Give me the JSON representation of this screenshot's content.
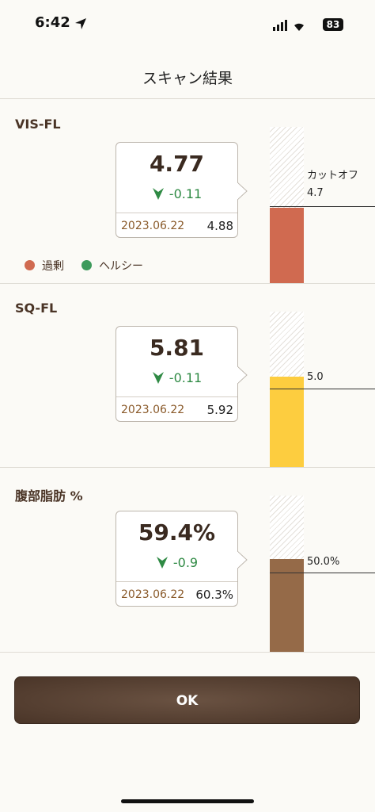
{
  "status_bar": {
    "time": "6:42",
    "battery": "83"
  },
  "header": {
    "title": "スキャン結果"
  },
  "sections": [
    {
      "label": "VIS-FL",
      "value": "4.77",
      "change": "-0.11",
      "date": "2023.06.22",
      "previous": "4.88",
      "cutoff_label": "カットオフ",
      "cutoff": "4.7",
      "legend": [
        "過剰",
        "ヘルシー"
      ]
    },
    {
      "label": "SQ-FL",
      "value": "5.81",
      "change": "-0.11",
      "date": "2023.06.22",
      "previous": "5.92",
      "cutoff": "5.0"
    },
    {
      "label": "腹部脂肪 %",
      "value": "59.4%",
      "change": "-0.9",
      "date": "2023.06.22",
      "previous": "60.3%",
      "cutoff": "50.0%"
    }
  ],
  "button": {
    "label": "OK"
  }
}
